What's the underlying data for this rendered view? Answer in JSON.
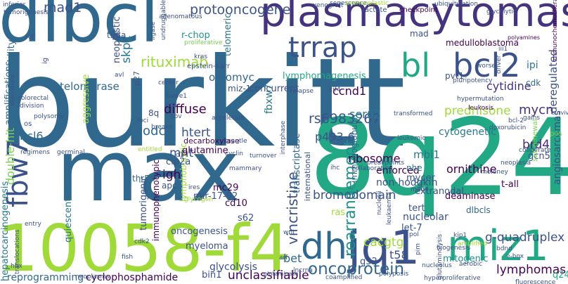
{
  "words": [
    {
      "text": "burkitt",
      "color": "#31688e"
    },
    {
      "text": "max",
      "color": "#31688e"
    },
    {
      "text": "8q24",
      "color": "#22a884"
    },
    {
      "text": "10058-f4",
      "color": "#a0da39"
    },
    {
      "text": "dlbcl",
      "color": "#31688e"
    },
    {
      "text": "plasmacytomas",
      "color": "#46337e"
    },
    {
      "text": "jq1",
      "color": "#3b528b"
    },
    {
      "text": "miz1",
      "color": "#22a884"
    },
    {
      "text": "dhl",
      "color": "#31688e"
    },
    {
      "text": "bl",
      "color": "#22a884"
    },
    {
      "text": "bcl2",
      "color": "#3b528b"
    },
    {
      "text": "trrap",
      "color": "#3b528b"
    },
    {
      "text": "fbw7",
      "color": "#3b528b"
    },
    {
      "text": "oncoprotein",
      "color": "#31688e"
    },
    {
      "text": "unclassifiable",
      "color": "#440154"
    },
    {
      "text": "rearrangement",
      "color": "#21918c"
    },
    {
      "text": "rituximab",
      "color": "#a0da39"
    },
    {
      "text": "protooncogene",
      "color": "#3b528b"
    },
    {
      "text": "mad1",
      "color": "#3b528b"
    },
    {
      "text": "lymphomagenesis",
      "color": "#22a884"
    },
    {
      "text": "telomerase",
      "color": "#31688e"
    },
    {
      "text": "rs6983267",
      "color": "#3b528b"
    },
    {
      "text": "ornithine",
      "color": "#440154"
    },
    {
      "text": "bromodomain",
      "color": "#3b528b"
    },
    {
      "text": "lymphomas",
      "color": "#440154"
    },
    {
      "text": "cacgtg",
      "color": "#a0da39"
    },
    {
      "text": "g-quadruplex",
      "color": "#3b528b"
    },
    {
      "text": "mitogenic",
      "color": "#21918c"
    },
    {
      "text": "reprogramming",
      "color": "#31688e"
    },
    {
      "text": "cyclophosphamide",
      "color": "#440154"
    },
    {
      "text": "glycolysis",
      "color": "#3b528b"
    },
    {
      "text": "vincristine",
      "color": "#3b528b"
    },
    {
      "text": "hepatocarcinogenesis",
      "color": "#2a788e"
    },
    {
      "text": "double-hit",
      "color": "#7ad151"
    },
    {
      "text": "amplifications",
      "color": "#31688e"
    },
    {
      "text": "angiosarcomas",
      "color": "#3b528b"
    },
    {
      "text": "deregulated",
      "color": "#3b528b"
    },
    {
      "text": "prednisone",
      "color": "#a0da39"
    },
    {
      "text": "cytidine",
      "color": "#46337e"
    },
    {
      "text": "diffuse",
      "color": "#440154"
    },
    {
      "text": "htert",
      "color": "#3b528b"
    },
    {
      "text": "omomyc",
      "color": "#31688e"
    },
    {
      "text": "ccnd1",
      "color": "#440154"
    },
    {
      "text": "ser62",
      "color": "#2a788e"
    },
    {
      "text": "p493-6",
      "color": "#3b528b"
    },
    {
      "text": "ribosome",
      "color": "#440154"
    },
    {
      "text": "mycn",
      "color": "#46337e"
    },
    {
      "text": "brd4",
      "color": "#482878"
    },
    {
      "text": "bcl6",
      "color": "#31688e"
    },
    {
      "text": "odc",
      "color": "#31688e"
    },
    {
      "text": "mnt",
      "color": "#3b528b"
    },
    {
      "text": "igh",
      "color": "#440154"
    },
    {
      "text": "bet",
      "color": "#31688e"
    },
    {
      "text": "t58",
      "color": "#3b528b"
    },
    {
      "text": "q32",
      "color": "#3b528b"
    },
    {
      "text": "q24",
      "color": "#22a884"
    },
    {
      "text": "ipi",
      "color": "#2a788e"
    },
    {
      "text": "skp2",
      "color": "#2a788e"
    },
    {
      "text": "miz-1",
      "color": "#3b528b"
    },
    {
      "text": "concurrent",
      "color": "#3b528b"
    },
    {
      "text": "enforced",
      "color": "#440154"
    },
    {
      "text": "non-hodgkin",
      "color": "#3b528b"
    },
    {
      "text": "mbi1",
      "color": "#2a788e"
    },
    {
      "text": "mycer",
      "color": "#3b528b"
    },
    {
      "text": "extranodal",
      "color": "#3b528b"
    },
    {
      "text": "deaminase",
      "color": "#440154"
    },
    {
      "text": "nucleolar",
      "color": "#3b528b"
    },
    {
      "text": "let-7",
      "color": "#3b528b"
    },
    {
      "text": "tert",
      "color": "#3b528b"
    },
    {
      "text": "dlbcls",
      "color": "#31688e"
    },
    {
      "text": "t-all",
      "color": "#440154"
    },
    {
      "text": "immunoglobulin",
      "color": "#31688e"
    },
    {
      "text": "transcriptase",
      "color": "#31688e"
    },
    {
      "text": "international",
      "color": "#3b528b"
    },
    {
      "text": "myeloma",
      "color": "#3b528b"
    },
    {
      "text": "oncogenesis",
      "color": "#3b528b"
    },
    {
      "text": "immunophenotypic",
      "color": "#440154"
    },
    {
      "text": "tumorigenic",
      "color": "#3b528b"
    },
    {
      "text": "lymphoblastic",
      "color": "#a0da39"
    },
    {
      "text": "quiescent",
      "color": "#2a788e"
    },
    {
      "text": "mc29",
      "color": "#440154"
    },
    {
      "text": "mir-17-92",
      "color": "#3b528b"
    },
    {
      "text": "cd10",
      "color": "#440154"
    },
    {
      "text": "s62",
      "color": "#3b528b"
    },
    {
      "text": "bin1",
      "color": "#3b528b"
    },
    {
      "text": "apc",
      "color": "#3b528b"
    },
    {
      "text": "thr58",
      "color": "#31688e"
    },
    {
      "text": "cip2a",
      "color": "#3b528b"
    },
    {
      "text": "glutamine",
      "color": "#440154"
    },
    {
      "text": "decarboxylase",
      "color": "#440154"
    },
    {
      "text": "neoplastic",
      "color": "#3b528b"
    },
    {
      "text": "t58a",
      "color": "#3b528b"
    },
    {
      "text": "r-chop",
      "color": "#21918c"
    },
    {
      "text": "instability",
      "color": "#31688e"
    },
    {
      "text": "aggressive",
      "color": "#a0da39"
    },
    {
      "text": "fbxw7",
      "color": "#2a788e"
    },
    {
      "text": "8q",
      "color": "#3b528b"
    },
    {
      "text": "cytogenetic",
      "color": "#2a788e"
    },
    {
      "text": "gcn5",
      "color": "#3b528b"
    },
    {
      "text": "pvt1",
      "color": "#3b528b"
    },
    {
      "text": "cdk",
      "color": "#31688e"
    },
    {
      "text": "mad",
      "color": "#3b528b"
    },
    {
      "text": "medulloblastoma",
      "color": "#440154"
    },
    {
      "text": "telomeric",
      "color": "#2a788e"
    },
    {
      "text": "ras",
      "color": "#a0da39"
    },
    {
      "text": "nhe",
      "color": "#2a788e"
    },
    {
      "text": "tumorigenesis",
      "color": "#3b528b"
    },
    {
      "text": "inferior",
      "color": "#3b528b"
    },
    {
      "text": "lactate",
      "color": "#3b528b"
    },
    {
      "text": "checkpoint",
      "color": "#440154"
    },
    {
      "text": "ubiquitylation",
      "color": "#3b528b"
    },
    {
      "text": "glycolytic",
      "color": "#3b528b"
    },
    {
      "text": "polyamines",
      "color": "#440154"
    },
    {
      "text": "immunochemotherapy",
      "color": "#440154"
    },
    {
      "text": "hypermutation",
      "color": "#3b528b"
    },
    {
      "text": "leukosis",
      "color": "#440154"
    },
    {
      "text": "doxorubicin",
      "color": "#3b528b"
    },
    {
      "text": "pos",
      "color": "#7ad151"
    },
    {
      "text": "survival",
      "color": "#3b528b"
    },
    {
      "text": "fluorescence",
      "color": "#3b528b"
    },
    {
      "text": "aerobic",
      "color": "#3b528b"
    },
    {
      "text": "e-box",
      "color": "#3b528b"
    },
    {
      "text": "biogenesis",
      "color": "#3b528b"
    },
    {
      "text": "glutaminolysis",
      "color": "#3b528b"
    },
    {
      "text": "hyperproliferative",
      "color": "#3b528b"
    },
    {
      "text": "polyposis",
      "color": "#3b528b"
    },
    {
      "text": "coamplified",
      "color": "#3b528b"
    },
    {
      "text": "glutaminase",
      "color": "#3b528b"
    },
    {
      "text": "translocations",
      "color": "#3b528b"
    },
    {
      "text": "neoplasms",
      "color": "#3b528b"
    },
    {
      "text": "entry",
      "color": "#3b528b"
    },
    {
      "text": "fish",
      "color": "#3b528b"
    },
    {
      "text": "collaboration",
      "color": "#3b528b"
    },
    {
      "text": "neoplasia",
      "color": "#3b528b"
    },
    {
      "text": "moloney",
      "color": "#3b528b"
    },
    {
      "text": "breakpoints",
      "color": "#3b528b"
    },
    {
      "text": "self-renewal",
      "color": "#7ad151"
    },
    {
      "text": "cooperate",
      "color": "#3b528b"
    },
    {
      "text": "transformed",
      "color": "#3b528b"
    },
    {
      "text": "leukemic",
      "color": "#3b528b"
    },
    {
      "text": "regimens",
      "color": "#3b528b"
    },
    {
      "text": "germinal",
      "color": "#3b528b"
    },
    {
      "text": "entitled",
      "color": "#a0da39"
    },
    {
      "text": "mantle",
      "color": "#3b528b"
    },
    {
      "text": "cyclin",
      "color": "#3b528b"
    },
    {
      "text": "turnover",
      "color": "#3b528b"
    },
    {
      "text": "mammary",
      "color": "#3b528b"
    },
    {
      "text": "ires",
      "color": "#3b528b"
    },
    {
      "text": "glycogen",
      "color": "#a0da39"
    },
    {
      "text": "accelerate",
      "color": "#3b528b"
    },
    {
      "text": "interphase",
      "color": "#3b528b"
    },
    {
      "text": "relapse",
      "color": "#3b528b"
    },
    {
      "text": "huwe1",
      "color": "#3b528b"
    },
    {
      "text": "epstein-barr",
      "color": "#3b528b"
    },
    {
      "text": "proliferative",
      "color": "#7ad151"
    },
    {
      "text": "ligase",
      "color": "#3b528b"
    },
    {
      "text": "undruggable",
      "color": "#3b528b"
    },
    {
      "text": "adenomatous",
      "color": "#3b528b"
    },
    {
      "text": "xenograft",
      "color": "#3b528b"
    },
    {
      "text": "senescence",
      "color": "#3b528b"
    },
    {
      "text": "preneoplastic",
      "color": "#a0da39"
    },
    {
      "text": "worse",
      "color": "#3b528b"
    },
    {
      "text": "iii1",
      "color": "#3b528b"
    },
    {
      "text": "driver",
      "color": "#3b528b"
    },
    {
      "text": "pluripotency",
      "color": "#3b528b"
    },
    {
      "text": "colorectal",
      "color": "#3b528b"
    },
    {
      "text": "division",
      "color": "#3b528b"
    },
    {
      "text": "aberrations",
      "color": "#3b528b"
    },
    {
      "text": "polysomy",
      "color": "#3b528b"
    },
    {
      "text": "center",
      "color": "#3b528b"
    },
    {
      "text": "kras",
      "color": "#3b528b"
    },
    {
      "text": "ebv",
      "color": "#3b528b"
    },
    {
      "text": "mbi",
      "color": "#3b528b"
    },
    {
      "text": "mad4",
      "color": "#3b528b"
    },
    {
      "text": "ihc",
      "color": "#3b528b"
    },
    {
      "text": "kif4",
      "color": "#3b528b"
    },
    {
      "text": "bcl-2",
      "color": "#3b528b"
    },
    {
      "text": "gains",
      "color": "#3b528b"
    },
    {
      "text": "p27",
      "color": "#3b528b"
    },
    {
      "text": "foci",
      "color": "#3b528b"
    },
    {
      "text": "breaks",
      "color": "#3b528b"
    },
    {
      "text": "d1",
      "color": "#3b528b"
    },
    {
      "text": "os",
      "color": "#3b528b"
    },
    {
      "text": "ig",
      "color": "#3b528b"
    },
    {
      "text": "avl",
      "color": "#3b528b"
    },
    {
      "text": "scf",
      "color": "#3b528b"
    },
    {
      "text": "hbx",
      "color": "#3b528b"
    },
    {
      "text": "nucleoli",
      "color": "#3b528b"
    },
    {
      "text": "leukaemia",
      "color": "#3b528b"
    },
    {
      "text": "pol",
      "color": "#3b528b"
    },
    {
      "text": "cdk2",
      "color": "#3b528b"
    },
    {
      "text": "wnt",
      "color": "#3b528b"
    },
    {
      "text": "arf",
      "color": "#3b528b"
    },
    {
      "text": "pim",
      "color": "#3b528b"
    },
    {
      "text": "lncrna",
      "color": "#3b528b"
    },
    {
      "text": "amplified",
      "color": "#a0da39"
    },
    {
      "text": "kip1",
      "color": "#3b528b"
    },
    {
      "text": "nucleolus",
      "color": "#3b528b"
    },
    {
      "text": "bdnd",
      "color": "#3b528b"
    }
  ]
}
